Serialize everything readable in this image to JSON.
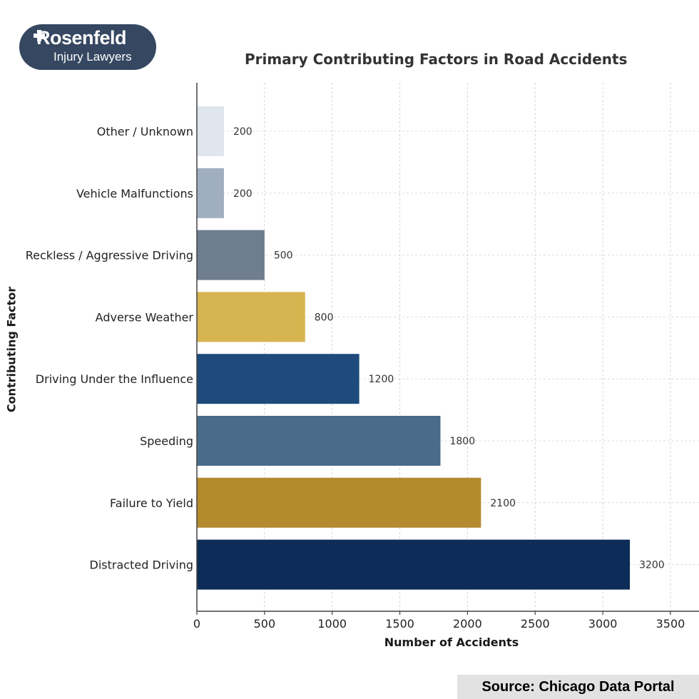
{
  "logo": {
    "name": "Rosenfeld",
    "subtitle": "Injury Lawyers"
  },
  "source": "Source: Chicago Data Portal",
  "chart_data": {
    "type": "bar",
    "orientation": "horizontal",
    "title": "Primary Contributing Factors in Road Accidents",
    "xlabel": "Number of Accidents",
    "ylabel": "Contributing Factor",
    "categories": [
      "Distracted Driving",
      "Failure to Yield",
      "Speeding",
      "Driving Under the Influence",
      "Adverse Weather",
      "Reckless / Aggressive Driving",
      "Vehicle Malfunctions",
      "Other / Unknown"
    ],
    "values": [
      3200,
      2100,
      1800,
      1200,
      800,
      500,
      200,
      200
    ],
    "colors": [
      "#0d2c57",
      "#b38a2e",
      "#4a6b8a",
      "#1e4b7b",
      "#d6b44f",
      "#6e7d8f",
      "#9faec0",
      "#dfe6ee"
    ],
    "xlim": [
      0,
      3500
    ],
    "xticks": [
      0,
      500,
      1000,
      1500,
      2000,
      2500,
      3000,
      3500
    ],
    "grid": true,
    "data_labels": true
  }
}
